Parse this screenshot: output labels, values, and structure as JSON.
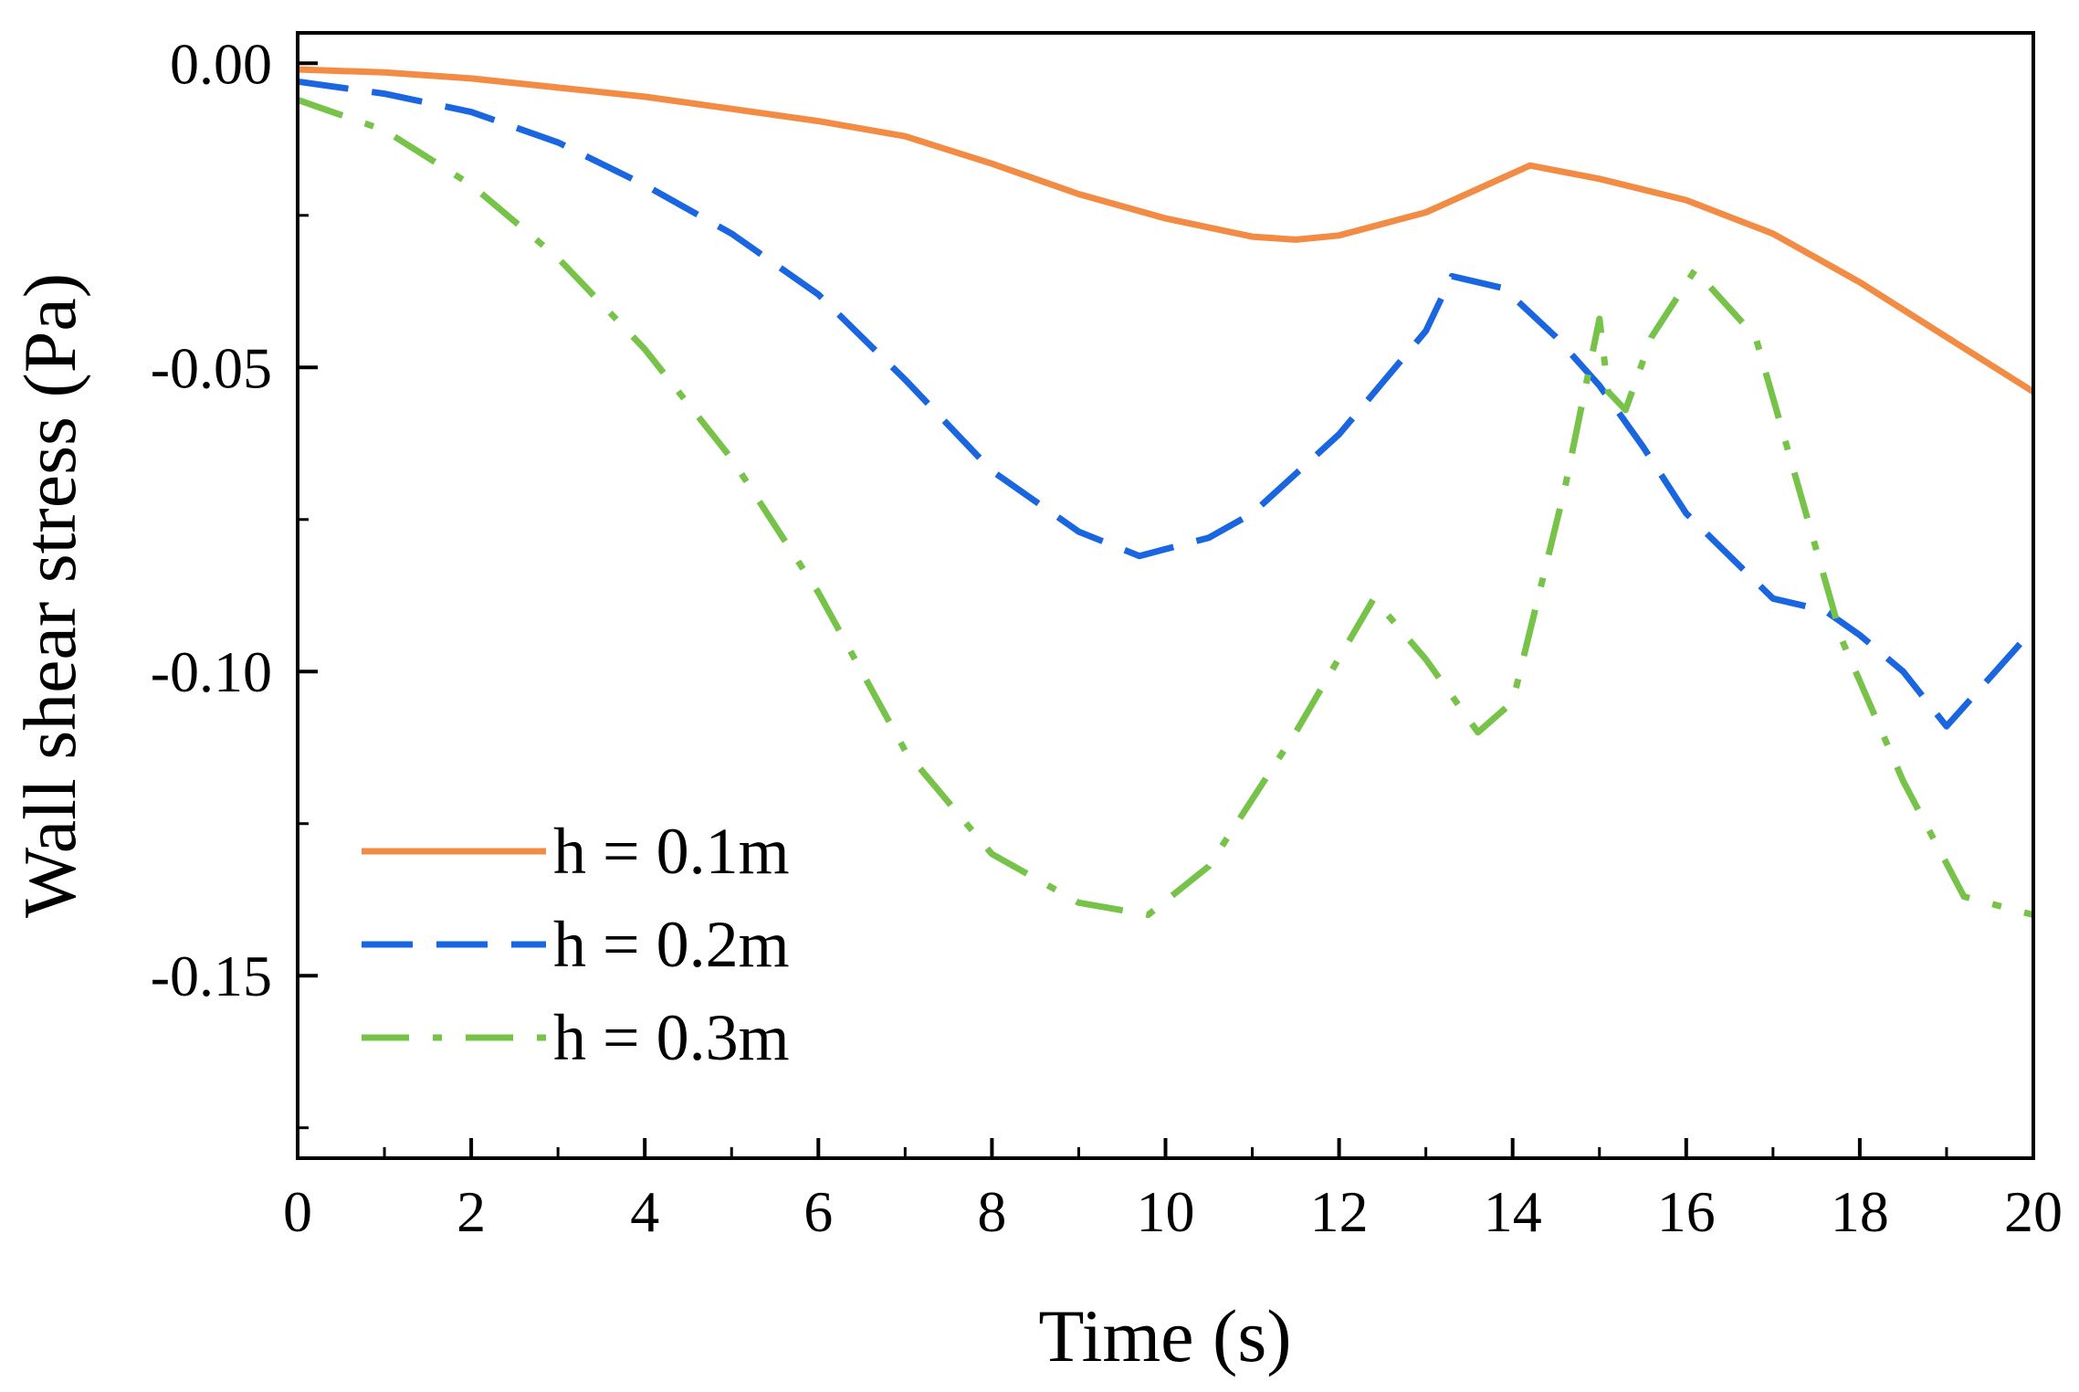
{
  "chart_data": {
    "type": "line",
    "title": "",
    "xlabel": "Time (s)",
    "ylabel": "Wall shear stress (Pa)",
    "xlim": [
      0,
      20
    ],
    "ylim": [
      -0.18,
      0.005
    ],
    "xticks": [
      0,
      2,
      4,
      6,
      8,
      10,
      12,
      14,
      16,
      18,
      20
    ],
    "xtick_labels": [
      "0",
      "2",
      "4",
      "6",
      "8",
      "10",
      "12",
      "14",
      "16",
      "18",
      "20"
    ],
    "yticks": [
      0.0,
      -0.05,
      -0.1,
      -0.15
    ],
    "ytick_labels": [
      "0.00",
      "-0.05",
      "-0.10",
      "-0.15"
    ],
    "grid": false,
    "legend_position": "bottom-left",
    "series": [
      {
        "name": "h = 0.1m",
        "style": "solid",
        "color": "#f28c45",
        "x": [
          0,
          1,
          2,
          3,
          4,
          5,
          6,
          7,
          8,
          9,
          10,
          11,
          11.5,
          12,
          13,
          14.2,
          15,
          16,
          17,
          18,
          19,
          20
        ],
        "y": [
          -0.001,
          -0.0015,
          -0.0025,
          -0.004,
          -0.0055,
          -0.0075,
          -0.0095,
          -0.012,
          -0.0165,
          -0.0215,
          -0.0255,
          -0.0285,
          -0.029,
          -0.0283,
          -0.0245,
          -0.0168,
          -0.019,
          -0.0225,
          -0.028,
          -0.036,
          -0.045,
          -0.054
        ]
      },
      {
        "name": "h = 0.2m",
        "style": "dashed",
        "color": "#1a66e0",
        "x": [
          0,
          1,
          2,
          3,
          4,
          5,
          6,
          7,
          8,
          9,
          9.7,
          10.5,
          11,
          12,
          13,
          13.3,
          13.9,
          14.5,
          15,
          15.5,
          16,
          17,
          17.6,
          18,
          18.5,
          19,
          20
        ],
        "y": [
          -0.003,
          -0.005,
          -0.008,
          -0.013,
          -0.02,
          -0.028,
          -0.038,
          -0.052,
          -0.067,
          -0.077,
          -0.081,
          -0.078,
          -0.074,
          -0.061,
          -0.044,
          -0.035,
          -0.037,
          -0.045,
          -0.053,
          -0.063,
          -0.074,
          -0.088,
          -0.09,
          -0.094,
          -0.1,
          -0.109,
          -0.093
        ]
      },
      {
        "name": "h = 0.3m",
        "style": "dashdot",
        "color": "#77c34a",
        "x": [
          0,
          1,
          2,
          3,
          4,
          5,
          6,
          7,
          8,
          9,
          9.8,
          10.5,
          11.5,
          12.4,
          13,
          13.6,
          14,
          14.6,
          15.0,
          15.1,
          15.3,
          15.6,
          16.1,
          16.8,
          17.2,
          17.8,
          18.5,
          19.2,
          20
        ],
        "y": [
          -0.006,
          -0.011,
          -0.02,
          -0.032,
          -0.047,
          -0.065,
          -0.087,
          -0.113,
          -0.13,
          -0.138,
          -0.14,
          -0.132,
          -0.11,
          -0.088,
          -0.098,
          -0.11,
          -0.105,
          -0.07,
          -0.042,
          -0.054,
          -0.057,
          -0.045,
          -0.034,
          -0.045,
          -0.065,
          -0.095,
          -0.118,
          -0.137,
          -0.14
        ]
      }
    ]
  }
}
